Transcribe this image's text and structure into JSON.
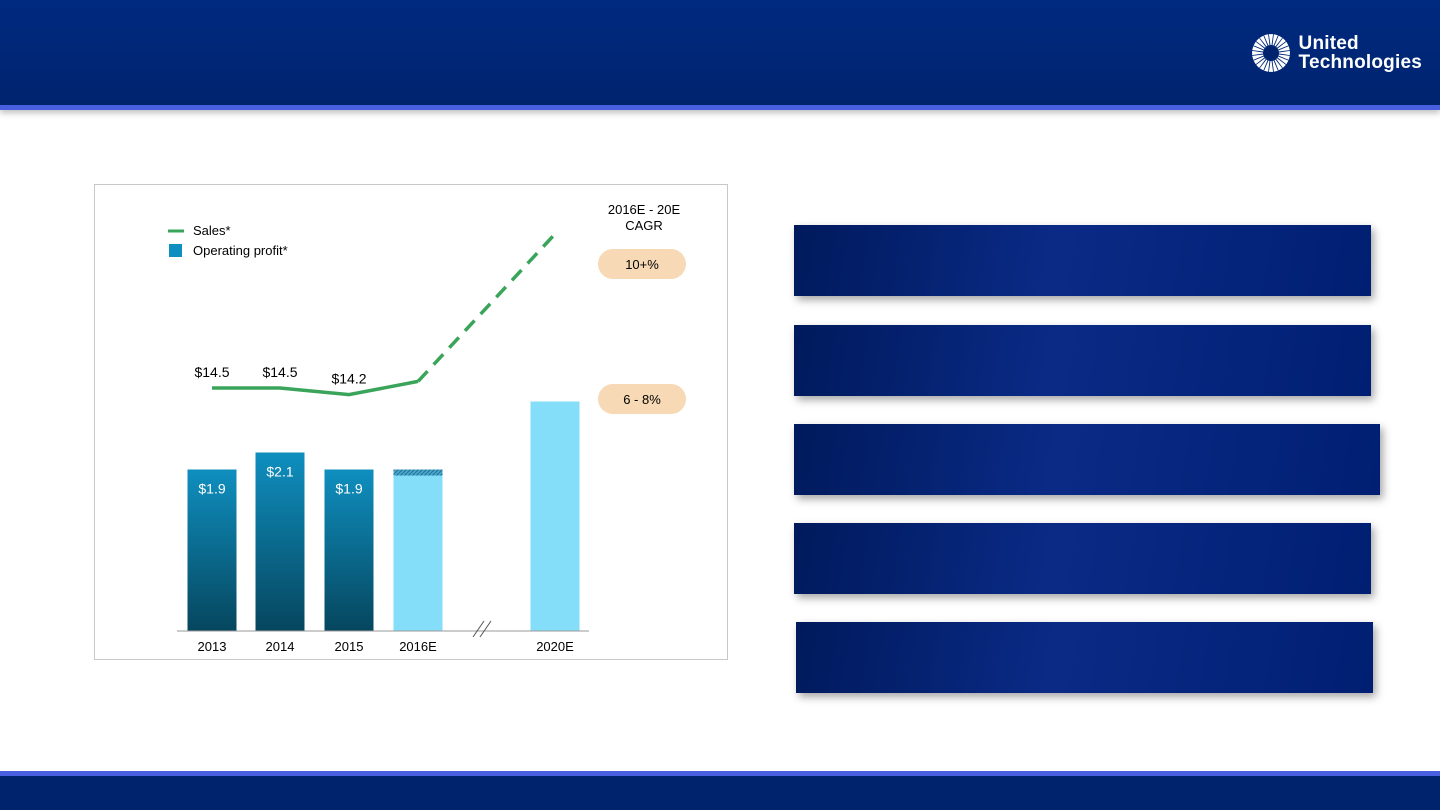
{
  "logo": {
    "line1": "United",
    "line2": "Technologies"
  },
  "colors": {
    "header_bg": "#00236e",
    "header_accent": "#4a5fe0",
    "bar_actual": "#0f8fbf",
    "bar_estimate": "#84def9",
    "sales_line": "#3aa55a",
    "cagr_pill": "#f7d9b5"
  },
  "cagr": {
    "header_line1": "2016E - 20E",
    "header_line2": "CAGR",
    "sales_rate": "10+%",
    "profit_rate": "6 - 8%"
  },
  "chart_data": {
    "type": "bar",
    "categories": [
      "2013",
      "2014",
      "2015",
      "2016E",
      "2020E"
    ],
    "estimate_categories": [
      "2016E",
      "2020E"
    ],
    "axis_break_between": [
      "2016E",
      "2020E"
    ],
    "legend": {
      "placement": "top-left",
      "line_label": "Sales*",
      "bar_label": "Operating profit*"
    },
    "series": [
      {
        "name": "Operating profit*",
        "kind": "bar",
        "values": [
          1.9,
          2.1,
          1.9,
          1.9,
          2.7
        ],
        "labels": [
          "$1.9",
          "$2.1",
          "$1.9",
          "",
          ""
        ]
      },
      {
        "name": "Sales*",
        "kind": "line",
        "values": [
          14.5,
          14.5,
          14.2,
          14.8,
          21.5
        ],
        "labels": [
          "$14.5",
          "$14.5",
          "$14.2",
          "",
          ""
        ],
        "dashed_segment": [
          "2016E",
          "2020E"
        ]
      }
    ],
    "grid": false
  },
  "right_panel": {
    "boxes": [
      "",
      "",
      "",
      "",
      ""
    ]
  }
}
